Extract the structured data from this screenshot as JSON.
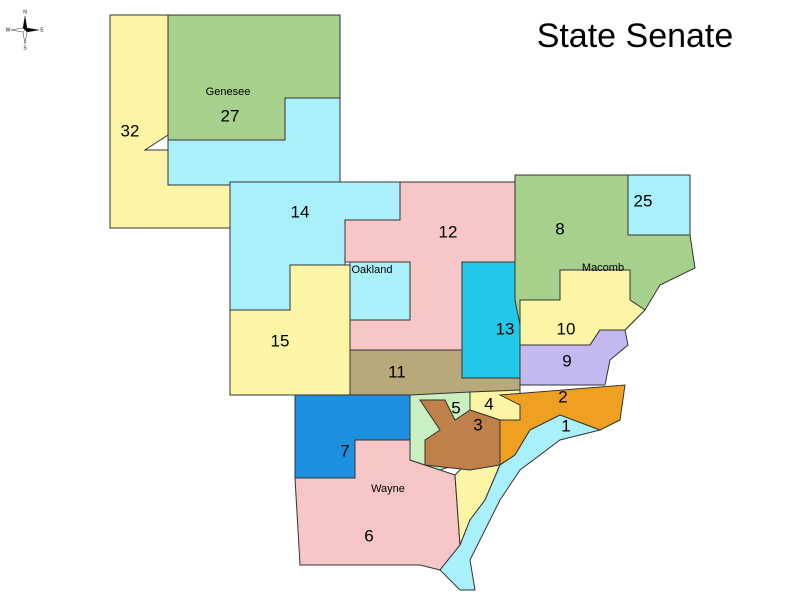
{
  "title": "State Senate",
  "compass": {
    "n": "N",
    "s": "S",
    "e": "E",
    "w": "W"
  },
  "counties": [
    "Genesee",
    "Oakland",
    "Macomb",
    "Wayne"
  ],
  "districts": [
    "32",
    "27",
    "14",
    "12",
    "8",
    "25",
    "15",
    "11",
    "13",
    "10",
    "9",
    "2",
    "1",
    "5",
    "4",
    "3",
    "7",
    "6"
  ]
}
